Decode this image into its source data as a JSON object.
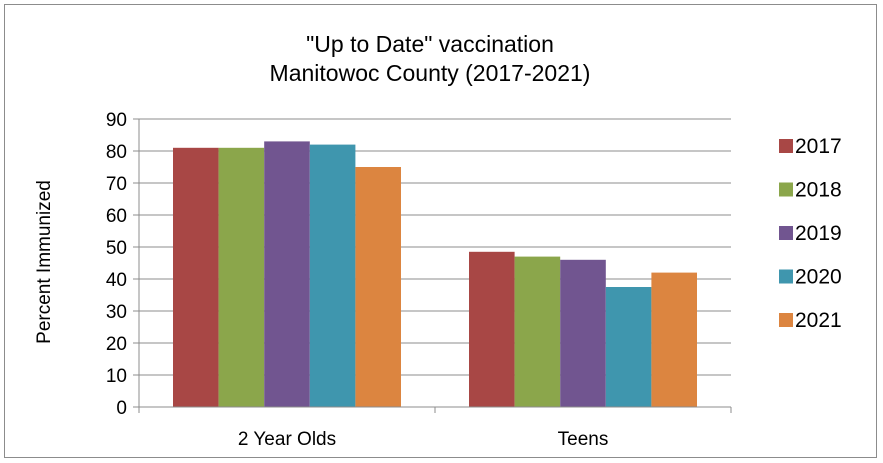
{
  "chart_data": {
    "type": "bar",
    "title_line1": "\"Up to Date\" vaccination",
    "title_line2": "Manitowoc County (2017-2021)",
    "xlabel": "",
    "ylabel": "Percent Immunized",
    "ylim": [
      0,
      90
    ],
    "yticks": [
      0,
      10,
      20,
      30,
      40,
      50,
      60,
      70,
      80,
      90
    ],
    "grid": true,
    "legend_position": "right",
    "categories": [
      "2 Year Olds",
      "Teens"
    ],
    "series": [
      {
        "name": "2017",
        "color": "#a84745",
        "values": [
          81,
          48.5
        ]
      },
      {
        "name": "2018",
        "color": "#8ba64b",
        "values": [
          81,
          47
        ]
      },
      {
        "name": "2019",
        "color": "#715590",
        "values": [
          83,
          46
        ]
      },
      {
        "name": "2020",
        "color": "#3f96ae",
        "values": [
          82,
          37.5
        ]
      },
      {
        "name": "2021",
        "color": "#dc8540",
        "values": [
          75,
          42
        ]
      }
    ]
  }
}
